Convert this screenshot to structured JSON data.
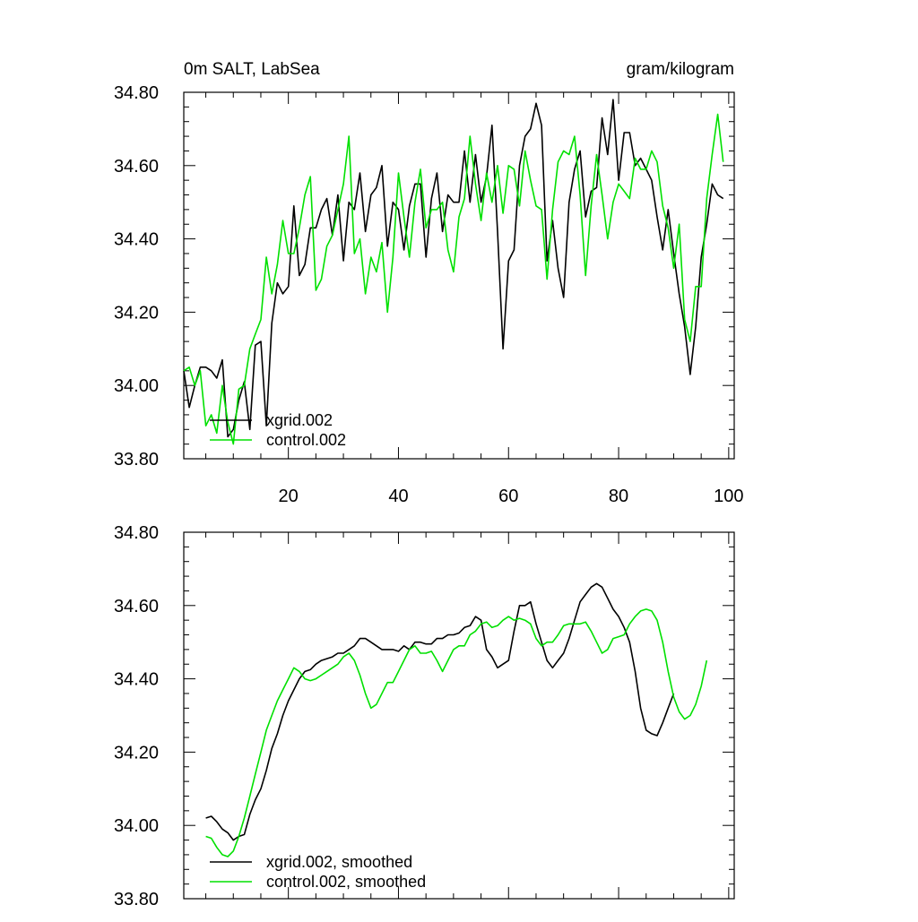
{
  "colors": {
    "xgrid": "#000000",
    "control": "#00e000",
    "axis": "#000000",
    "background": "#ffffff"
  },
  "chart_data": [
    {
      "type": "line",
      "title_left": "0m SALT, LabSea",
      "title_right": "gram/kilogram",
      "xlabel": "",
      "ylabel": "",
      "xlim": [
        1,
        101
      ],
      "ylim": [
        33.8,
        34.8
      ],
      "xticks": [
        20,
        40,
        60,
        80,
        100
      ],
      "yticks": [
        "33.80",
        "34.00",
        "34.20",
        "34.40",
        "34.60",
        "34.80"
      ],
      "grid": false,
      "legend_position": "bottom-left",
      "x_start": 1,
      "series": [
        {
          "name": "xgrid.002",
          "color": "#000000",
          "values": [
            34.04,
            33.94,
            34.0,
            34.05,
            34.05,
            34.04,
            34.02,
            34.07,
            33.86,
            33.88,
            33.96,
            34.01,
            33.88,
            34.11,
            34.12,
            33.89,
            34.17,
            34.28,
            34.25,
            34.27,
            34.49,
            34.3,
            34.33,
            34.43,
            34.43,
            34.48,
            34.51,
            34.41,
            34.52,
            34.34,
            34.5,
            34.48,
            34.58,
            34.42,
            34.52,
            34.54,
            34.6,
            34.38,
            34.5,
            34.48,
            34.37,
            34.49,
            34.55,
            34.55,
            34.35,
            34.51,
            34.58,
            34.42,
            34.52,
            34.5,
            34.5,
            34.64,
            34.5,
            34.63,
            34.5,
            34.57,
            34.71,
            34.42,
            34.1,
            34.34,
            34.37,
            34.6,
            34.68,
            34.7,
            34.77,
            34.71,
            34.34,
            34.45,
            34.32,
            34.24,
            34.5,
            34.59,
            34.64,
            34.46,
            34.53,
            34.54,
            34.73,
            34.63,
            34.78,
            34.56,
            34.69,
            34.69,
            34.6,
            34.62,
            34.59,
            34.56,
            34.46,
            34.37,
            34.48,
            34.36,
            34.25,
            34.16,
            34.03,
            34.16,
            34.35,
            34.44,
            34.55,
            34.52,
            34.51
          ]
        },
        {
          "name": "control.002",
          "color": "#00e000",
          "values": [
            34.04,
            34.05,
            34.0,
            34.04,
            33.89,
            33.92,
            33.87,
            34.0,
            33.9,
            33.84,
            33.99,
            34.0,
            34.1,
            34.14,
            34.18,
            34.35,
            34.25,
            34.33,
            34.45,
            34.36,
            34.36,
            34.43,
            34.52,
            34.57,
            34.26,
            34.29,
            34.38,
            34.41,
            34.48,
            34.55,
            34.68,
            34.36,
            34.4,
            34.25,
            34.35,
            34.31,
            34.39,
            34.2,
            34.35,
            34.58,
            34.46,
            34.35,
            34.5,
            34.59,
            34.43,
            34.48,
            34.48,
            34.5,
            34.37,
            34.31,
            34.46,
            34.51,
            34.68,
            34.55,
            34.45,
            34.58,
            34.5,
            34.6,
            34.47,
            34.6,
            34.59,
            34.49,
            34.64,
            34.56,
            34.49,
            34.48,
            34.29,
            34.48,
            34.61,
            34.64,
            34.63,
            34.68,
            34.52,
            34.3,
            34.49,
            34.63,
            34.52,
            34.4,
            34.5,
            34.55,
            34.53,
            34.51,
            34.62,
            34.59,
            34.59,
            34.64,
            34.61,
            34.49,
            34.43,
            34.32,
            34.44,
            34.18,
            34.12,
            34.27,
            34.27,
            34.51,
            34.63,
            34.74,
            34.61
          ]
        }
      ]
    },
    {
      "type": "line",
      "title_left": "",
      "title_right": "",
      "xlabel": "",
      "ylabel": "",
      "xlim": [
        1,
        101
      ],
      "ylim": [
        33.8,
        34.8
      ],
      "xticks": [
        20,
        40,
        60,
        80,
        100
      ],
      "yticks": [
        "33.80",
        "34.00",
        "34.20",
        "34.40",
        "34.60",
        "34.80"
      ],
      "grid": false,
      "legend_position": "bottom-left",
      "x_start": 5,
      "series": [
        {
          "name": "xgrid.002, smoothed",
          "color": "#000000",
          "values": [
            34.02,
            34.025,
            34.01,
            33.99,
            33.98,
            33.96,
            33.97,
            33.975,
            34.03,
            34.07,
            34.1,
            34.15,
            34.21,
            34.25,
            34.3,
            34.34,
            34.37,
            34.4,
            34.42,
            34.425,
            34.44,
            34.45,
            34.455,
            34.46,
            34.47,
            34.47,
            34.48,
            34.49,
            34.51,
            34.51,
            34.5,
            34.49,
            34.48,
            34.48,
            34.48,
            34.475,
            34.49,
            34.48,
            34.5,
            34.5,
            34.495,
            34.495,
            34.51,
            34.51,
            34.52,
            34.52,
            34.525,
            34.54,
            34.545,
            34.57,
            34.56,
            34.48,
            34.46,
            34.43,
            34.44,
            34.45,
            34.53,
            34.6,
            34.6,
            34.61,
            34.55,
            34.5,
            34.45,
            34.43,
            34.45,
            34.47,
            34.51,
            34.56,
            34.61,
            34.63,
            34.65,
            34.66,
            34.65,
            34.62,
            34.59,
            34.57,
            34.54,
            34.5,
            34.42,
            34.32,
            34.26,
            34.25,
            34.245,
            34.28,
            34.32,
            34.36
          ]
        },
        {
          "name": "control.002, smoothed",
          "color": "#00e000",
          "values": [
            33.97,
            33.965,
            33.94,
            33.92,
            33.915,
            33.93,
            33.97,
            34.02,
            34.08,
            34.14,
            34.2,
            34.26,
            34.3,
            34.34,
            34.37,
            34.4,
            34.43,
            34.42,
            34.4,
            34.395,
            34.4,
            34.41,
            34.42,
            34.43,
            34.44,
            34.46,
            34.47,
            34.45,
            34.41,
            34.36,
            34.32,
            34.33,
            34.36,
            34.39,
            34.39,
            34.42,
            34.45,
            34.48,
            34.49,
            34.47,
            34.47,
            34.475,
            34.45,
            34.42,
            34.45,
            34.48,
            34.49,
            34.49,
            34.52,
            34.53,
            34.55,
            34.555,
            34.54,
            34.545,
            34.56,
            34.57,
            34.56,
            34.565,
            34.56,
            34.55,
            34.51,
            34.49,
            34.5,
            34.5,
            34.52,
            34.545,
            34.55,
            34.55,
            34.55,
            34.555,
            34.53,
            34.5,
            34.47,
            34.48,
            34.51,
            34.515,
            34.52,
            34.55,
            34.57,
            34.585,
            34.59,
            34.585,
            34.56,
            34.5,
            34.42,
            34.35,
            34.31,
            34.29,
            34.3,
            34.33,
            34.38,
            34.45
          ]
        }
      ]
    }
  ]
}
